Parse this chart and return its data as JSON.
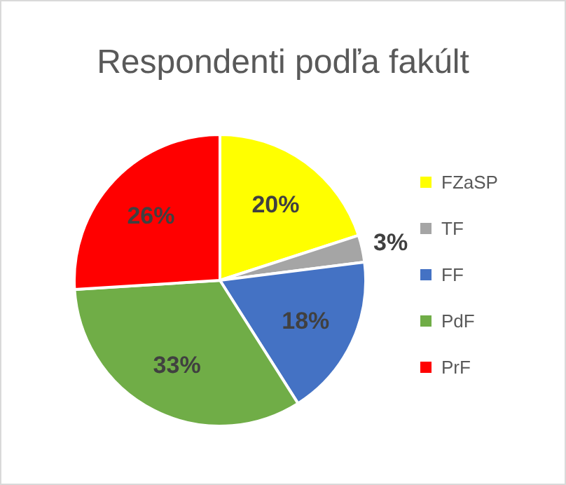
{
  "chart_data": {
    "type": "pie",
    "title": "Respondenti podľa fakúlt",
    "categories": [
      "FZaSP",
      "TF",
      "FF",
      "PdF",
      "PrF"
    ],
    "values": [
      20,
      3,
      18,
      33,
      26
    ],
    "colors": [
      "#ffff00",
      "#a5a5a5",
      "#4472c4",
      "#70ad47",
      "#ff0000"
    ],
    "value_labels": [
      "20%",
      "3%",
      "18%",
      "33%",
      "26%"
    ],
    "legend": "right"
  }
}
